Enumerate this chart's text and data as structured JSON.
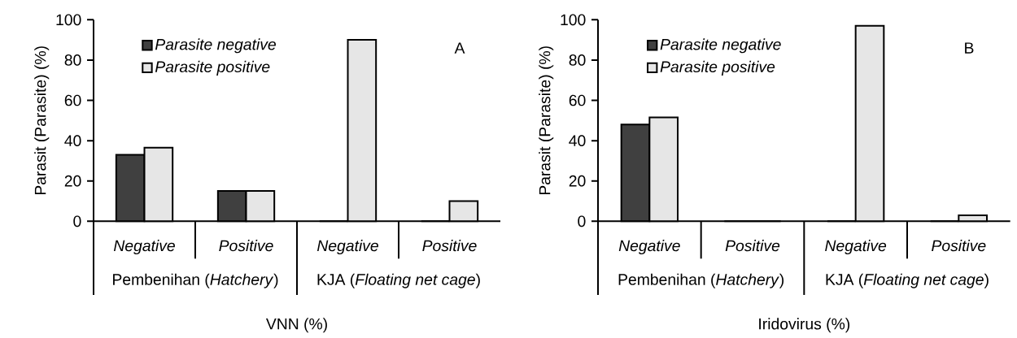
{
  "chart_data": [
    {
      "type": "bar",
      "title": "A",
      "categories": [
        "Negative",
        "Positive",
        "Negative",
        "Positive"
      ],
      "xlabel": "VNN (%)",
      "ylabel": "Parasit (Parasite) (%)",
      "annotations": [
        "Pembenihan (*Hatchery*)",
        "KJA (*Floating net cage*)"
      ],
      "series": [
        {
          "name": "Parasite negative",
          "color": "#404040",
          "values": [
            33,
            15,
            0,
            0
          ]
        },
        {
          "name": "Parasite positive",
          "color": "#e6e6e6",
          "values": [
            36.5,
            15,
            90,
            10
          ]
        }
      ],
      "ylim": [
        0,
        100
      ],
      "yticks": [
        0,
        20,
        40,
        60,
        80,
        100
      ],
      "legend": "top left"
    },
    {
      "type": "bar",
      "title": "B",
      "categories": [
        "Negative",
        "Positive",
        "Negative",
        "Positive"
      ],
      "xlabel": "Iridovirus (%)",
      "ylabel": "Parasit (Parasite) (%)",
      "annotations": [
        "Pembenihan (*Hatchery*)",
        "KJA (*Floating net cage*)"
      ],
      "series": [
        {
          "name": "Parasite negative",
          "color": "#404040",
          "values": [
            48,
            0,
            0,
            0
          ]
        },
        {
          "name": "Parasite positive",
          "color": "#e6e6e6",
          "values": [
            51.5,
            0,
            97,
            3
          ]
        }
      ],
      "ylim": [
        0,
        100
      ],
      "yticks": [
        0,
        20,
        40,
        60,
        80,
        100
      ],
      "legend": "top left"
    }
  ]
}
